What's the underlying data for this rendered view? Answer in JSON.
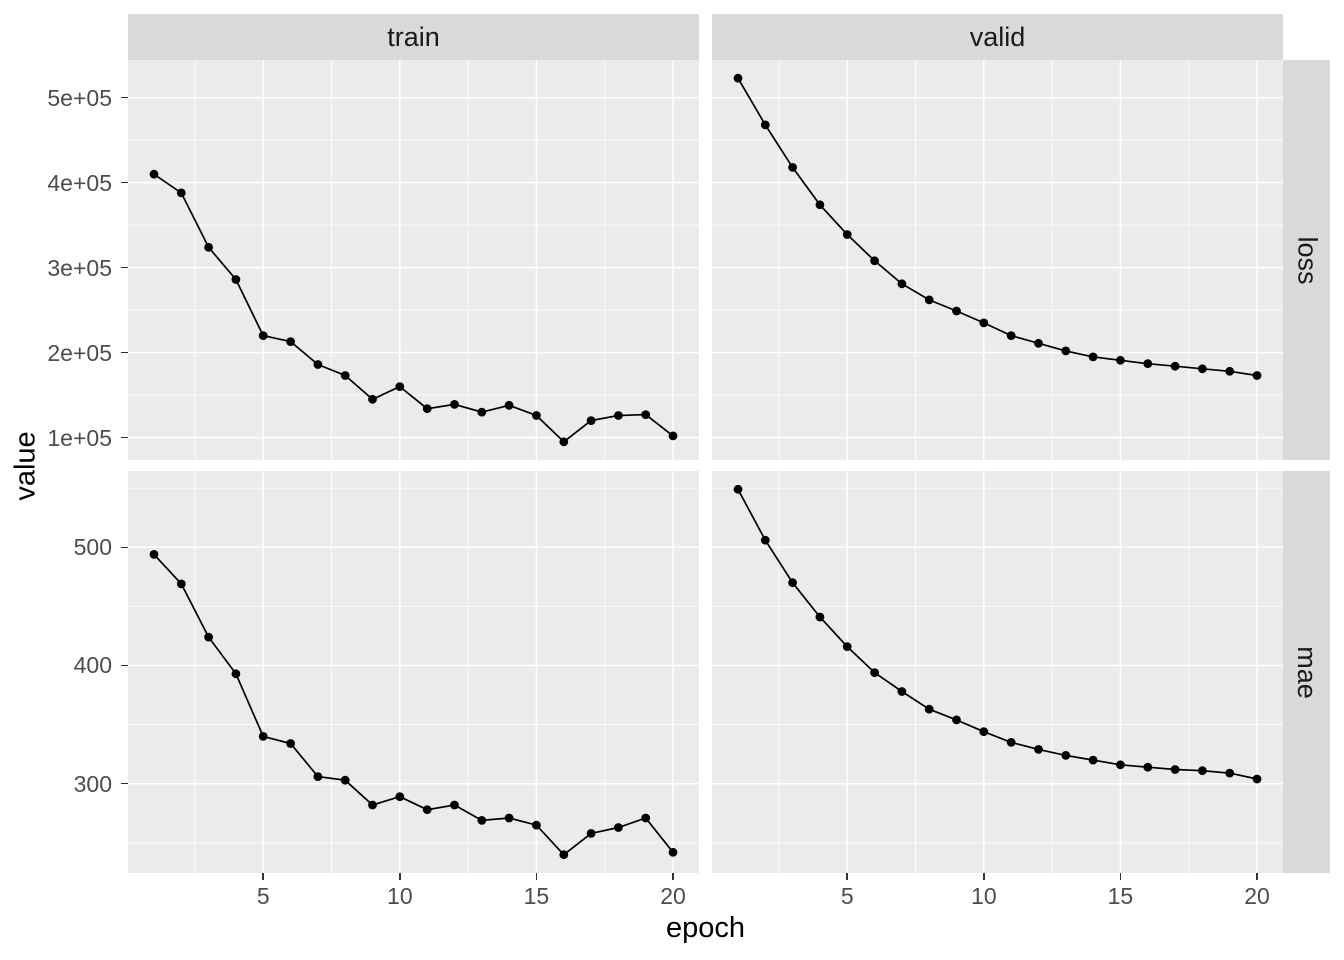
{
  "figure": {
    "background": "#FFFFFF",
    "panel_background": "#EBEBEB",
    "strip_background": "#D9D9D9",
    "grid_color": "#FFFFFF",
    "line_color": "#000000",
    "point_color": "#000000",
    "tick_label_color": "#4D4D4D",
    "tick_mark_color": "#333333",
    "title_color": "#000000",
    "strip_text_color": "#1A1A1A"
  },
  "chart_data": {
    "type": "line",
    "title": "",
    "xlabel": "epoch",
    "ylabel": "value",
    "legend": "none",
    "grid": true,
    "point_marker": "circle",
    "facet_cols": [
      "train",
      "valid"
    ],
    "facet_rows": [
      "loss",
      "mae"
    ],
    "x": [
      1,
      2,
      3,
      4,
      5,
      6,
      7,
      8,
      9,
      10,
      11,
      12,
      13,
      14,
      15,
      16,
      17,
      18,
      19,
      20
    ],
    "x_axis": {
      "ticks": [
        5,
        10,
        15,
        20
      ],
      "tick_labels": [
        "5",
        "10",
        "15",
        "20"
      ],
      "minor_ticks": [
        2.5,
        7.5,
        12.5,
        17.5
      ],
      "range": [
        0.05,
        20.95
      ]
    },
    "y_axis_loss": {
      "ticks": [
        100000,
        200000,
        300000,
        400000,
        500000
      ],
      "tick_labels": [
        "1e+05",
        "2e+05",
        "3e+05",
        "4e+05",
        "5e+05"
      ],
      "minor_ticks": [
        150000,
        250000,
        350000,
        450000
      ],
      "range": [
        73600,
        544400
      ]
    },
    "y_axis_mae": {
      "ticks": [
        300,
        400,
        500
      ],
      "tick_labels": [
        "300",
        "400",
        "500"
      ],
      "minor_ticks": [
        250,
        350,
        450,
        550
      ],
      "range": [
        224.5,
        564.5
      ]
    },
    "panels": [
      {
        "col": "train",
        "row": "loss",
        "values": [
          410000,
          388000,
          324000,
          286000,
          220000,
          213000,
          186000,
          173000,
          145000,
          160000,
          134000,
          139000,
          130000,
          138000,
          126000,
          95000,
          120000,
          126000,
          127000,
          102000
        ]
      },
      {
        "col": "valid",
        "row": "loss",
        "values": [
          523000,
          468000,
          418000,
          374000,
          339000,
          308000,
          281000,
          262000,
          249000,
          235000,
          220000,
          211000,
          202000,
          195000,
          191000,
          187000,
          184000,
          181000,
          178000,
          173000
        ]
      },
      {
        "col": "train",
        "row": "mae",
        "values": [
          494,
          469,
          424,
          393,
          340,
          334,
          306,
          303,
          282,
          289,
          278,
          282,
          269,
          271,
          265,
          240,
          258,
          263,
          271,
          242
        ]
      },
      {
        "col": "valid",
        "row": "mae",
        "values": [
          549,
          506,
          470,
          441,
          416,
          394,
          378,
          363,
          354,
          344,
          335,
          329,
          324,
          320,
          316,
          314,
          312,
          311,
          309,
          304
        ]
      }
    ]
  }
}
